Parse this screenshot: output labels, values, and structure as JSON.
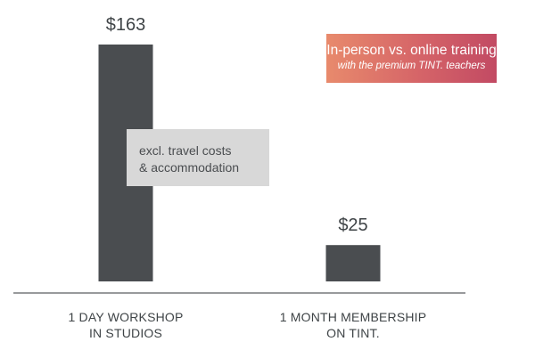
{
  "chart_data": {
    "type": "bar",
    "categories": [
      [
        "1 DAY WORKSHOP",
        "IN STUDIOS"
      ],
      [
        "1 MONTH MEMBERSHIP",
        "ON TINT."
      ]
    ],
    "values": [
      163,
      25
    ],
    "data_labels": [
      "$163",
      "$25"
    ],
    "title": "In-person vs. online training",
    "subtitle": "with the premium TINT. teachers",
    "annotation": [
      "excl. travel costs",
      "& accommodation"
    ],
    "ylim": [
      0,
      163
    ],
    "grid": false,
    "bar_color": "#4a4d50"
  },
  "colors": {
    "bar": "#4a4d50",
    "baseline": "#5a5d60",
    "badge_start": "#e88a6c",
    "badge_end": "#c24a63",
    "note_bg": "#d8d8d8"
  }
}
